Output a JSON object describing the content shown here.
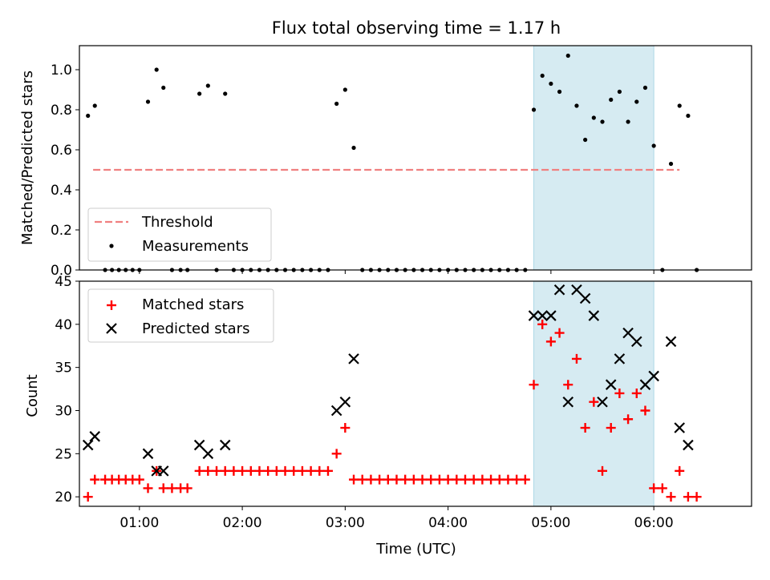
{
  "title": "Flux total observing time = 1.17 h",
  "colors": {
    "threshold": "#f08080",
    "measurements": "#000000",
    "matched": "#ff0000",
    "predicted": "#000000",
    "highlight": "#add8e6"
  },
  "chart_data": [
    {
      "type": "scatter",
      "panel": "top",
      "ylabel": "Matched/Predicted stars",
      "xlim": [
        "00:25",
        "06:57"
      ],
      "ylim": [
        0,
        1.12
      ],
      "yticks": [
        "0.0",
        "0.2",
        "0.4",
        "0.6",
        "0.8",
        "1.0"
      ],
      "highlight_span": [
        "04:50",
        "06:00"
      ],
      "legend": {
        "position": "lower-left",
        "entries": [
          {
            "key": "threshold",
            "label": "Threshold"
          },
          {
            "key": "measurements",
            "label": "Measurements"
          }
        ]
      },
      "threshold": {
        "value": 0.5,
        "x": [
          "00:33",
          "06:15"
        ]
      },
      "series": [
        {
          "name": "Measurements",
          "points": [
            [
              "00:30",
              0.77
            ],
            [
              "00:34",
              0.82
            ],
            [
              "00:40",
              0
            ],
            [
              "00:44",
              0
            ],
            [
              "00:48",
              0
            ],
            [
              "00:52",
              0
            ],
            [
              "00:56",
              0
            ],
            [
              "01:00",
              0
            ],
            [
              "01:05",
              0.84
            ],
            [
              "01:10",
              1.0
            ],
            [
              "01:14",
              0.91
            ],
            [
              "01:19",
              0
            ],
            [
              "01:24",
              0
            ],
            [
              "01:28",
              0
            ],
            [
              "01:35",
              0.88
            ],
            [
              "01:40",
              0.92
            ],
            [
              "01:45",
              0
            ],
            [
              "01:50",
              0.88
            ],
            [
              "01:55",
              0
            ],
            [
              "02:00",
              0
            ],
            [
              "02:05",
              0
            ],
            [
              "02:10",
              0
            ],
            [
              "02:15",
              0
            ],
            [
              "02:20",
              0
            ],
            [
              "02:25",
              0
            ],
            [
              "02:30",
              0
            ],
            [
              "02:35",
              0
            ],
            [
              "02:40",
              0
            ],
            [
              "02:45",
              0
            ],
            [
              "02:50",
              0
            ],
            [
              "02:55",
              0.83
            ],
            [
              "03:00",
              0.9
            ],
            [
              "03:05",
              0.61
            ],
            [
              "03:10",
              0
            ],
            [
              "03:15",
              0
            ],
            [
              "03:20",
              0
            ],
            [
              "03:25",
              0
            ],
            [
              "03:30",
              0
            ],
            [
              "03:35",
              0
            ],
            [
              "03:40",
              0
            ],
            [
              "03:45",
              0
            ],
            [
              "03:50",
              0
            ],
            [
              "03:55",
              0
            ],
            [
              "04:00",
              0
            ],
            [
              "04:05",
              0
            ],
            [
              "04:10",
              0
            ],
            [
              "04:15",
              0
            ],
            [
              "04:20",
              0
            ],
            [
              "04:25",
              0
            ],
            [
              "04:30",
              0
            ],
            [
              "04:35",
              0
            ],
            [
              "04:40",
              0
            ],
            [
              "04:45",
              0
            ],
            [
              "04:50",
              0.8
            ],
            [
              "04:55",
              0.97
            ],
            [
              "05:00",
              0.93
            ],
            [
              "05:05",
              0.89
            ],
            [
              "05:10",
              1.07
            ],
            [
              "05:15",
              0.82
            ],
            [
              "05:20",
              0.65
            ],
            [
              "05:25",
              0.76
            ],
            [
              "05:30",
              0.74
            ],
            [
              "05:35",
              0.85
            ],
            [
              "05:40",
              0.89
            ],
            [
              "05:45",
              0.74
            ],
            [
              "05:50",
              0.84
            ],
            [
              "05:55",
              0.91
            ],
            [
              "06:00",
              0.62
            ],
            [
              "06:05",
              0
            ],
            [
              "06:10",
              0.53
            ],
            [
              "06:15",
              0.82
            ],
            [
              "06:20",
              0.77
            ],
            [
              "06:25",
              0
            ]
          ]
        }
      ]
    },
    {
      "type": "scatter",
      "panel": "bottom",
      "xlabel": "Time (UTC)",
      "ylabel": "Count",
      "xlim": [
        "00:25",
        "06:57"
      ],
      "ylim": [
        18.9,
        45
      ],
      "xticks": [
        "01:00",
        "02:00",
        "03:00",
        "04:00",
        "05:00",
        "06:00"
      ],
      "yticks": [
        "20",
        "25",
        "30",
        "35",
        "40",
        "45"
      ],
      "highlight_span": [
        "04:50",
        "06:00"
      ],
      "legend": {
        "position": "upper-left",
        "entries": [
          {
            "key": "matched",
            "label": "Matched stars"
          },
          {
            "key": "predicted",
            "label": "Predicted stars"
          }
        ]
      },
      "series": [
        {
          "name": "Matched stars",
          "points": [
            [
              "00:30",
              20
            ],
            [
              "00:34",
              22
            ],
            [
              "00:40",
              22
            ],
            [
              "00:44",
              22
            ],
            [
              "00:48",
              22
            ],
            [
              "00:52",
              22
            ],
            [
              "00:56",
              22
            ],
            [
              "01:00",
              22
            ],
            [
              "01:05",
              21
            ],
            [
              "01:10",
              23
            ],
            [
              "01:14",
              21
            ],
            [
              "01:19",
              21
            ],
            [
              "01:24",
              21
            ],
            [
              "01:28",
              21
            ],
            [
              "01:35",
              23
            ],
            [
              "01:40",
              23
            ],
            [
              "01:45",
              23
            ],
            [
              "01:50",
              23
            ],
            [
              "01:55",
              23
            ],
            [
              "02:00",
              23
            ],
            [
              "02:05",
              23
            ],
            [
              "02:10",
              23
            ],
            [
              "02:15",
              23
            ],
            [
              "02:20",
              23
            ],
            [
              "02:25",
              23
            ],
            [
              "02:30",
              23
            ],
            [
              "02:35",
              23
            ],
            [
              "02:40",
              23
            ],
            [
              "02:45",
              23
            ],
            [
              "02:50",
              23
            ],
            [
              "02:55",
              25
            ],
            [
              "03:00",
              28
            ],
            [
              "03:05",
              22
            ],
            [
              "03:10",
              22
            ],
            [
              "03:15",
              22
            ],
            [
              "03:20",
              22
            ],
            [
              "03:25",
              22
            ],
            [
              "03:30",
              22
            ],
            [
              "03:35",
              22
            ],
            [
              "03:40",
              22
            ],
            [
              "03:45",
              22
            ],
            [
              "03:50",
              22
            ],
            [
              "03:55",
              22
            ],
            [
              "04:00",
              22
            ],
            [
              "04:05",
              22
            ],
            [
              "04:10",
              22
            ],
            [
              "04:15",
              22
            ],
            [
              "04:20",
              22
            ],
            [
              "04:25",
              22
            ],
            [
              "04:30",
              22
            ],
            [
              "04:35",
              22
            ],
            [
              "04:40",
              22
            ],
            [
              "04:45",
              22
            ],
            [
              "04:50",
              33
            ],
            [
              "04:55",
              40
            ],
            [
              "05:00",
              38
            ],
            [
              "05:05",
              39
            ],
            [
              "05:10",
              33
            ],
            [
              "05:15",
              36
            ],
            [
              "05:20",
              28
            ],
            [
              "05:25",
              31
            ],
            [
              "05:30",
              23
            ],
            [
              "05:35",
              28
            ],
            [
              "05:40",
              32
            ],
            [
              "05:45",
              29
            ],
            [
              "05:50",
              32
            ],
            [
              "05:55",
              30
            ],
            [
              "06:00",
              21
            ],
            [
              "06:05",
              21
            ],
            [
              "06:10",
              20
            ],
            [
              "06:15",
              23
            ],
            [
              "06:20",
              20
            ],
            [
              "06:25",
              20
            ]
          ]
        },
        {
          "name": "Predicted stars",
          "points": [
            [
              "00:30",
              26
            ],
            [
              "00:34",
              27
            ],
            [
              "01:05",
              25
            ],
            [
              "01:10",
              23
            ],
            [
              "01:14",
              23
            ],
            [
              "01:35",
              26
            ],
            [
              "01:40",
              25
            ],
            [
              "01:50",
              26
            ],
            [
              "02:55",
              30
            ],
            [
              "03:00",
              31
            ],
            [
              "03:05",
              36
            ],
            [
              "04:50",
              41
            ],
            [
              "04:55",
              41
            ],
            [
              "05:00",
              41
            ],
            [
              "05:05",
              44
            ],
            [
              "05:10",
              31
            ],
            [
              "05:15",
              44
            ],
            [
              "05:20",
              43
            ],
            [
              "05:25",
              41
            ],
            [
              "05:30",
              31
            ],
            [
              "05:35",
              33
            ],
            [
              "05:40",
              36
            ],
            [
              "05:45",
              39
            ],
            [
              "05:50",
              38
            ],
            [
              "05:55",
              33
            ],
            [
              "06:00",
              34
            ],
            [
              "06:10",
              38
            ],
            [
              "06:15",
              28
            ],
            [
              "06:20",
              26
            ]
          ]
        }
      ]
    }
  ]
}
